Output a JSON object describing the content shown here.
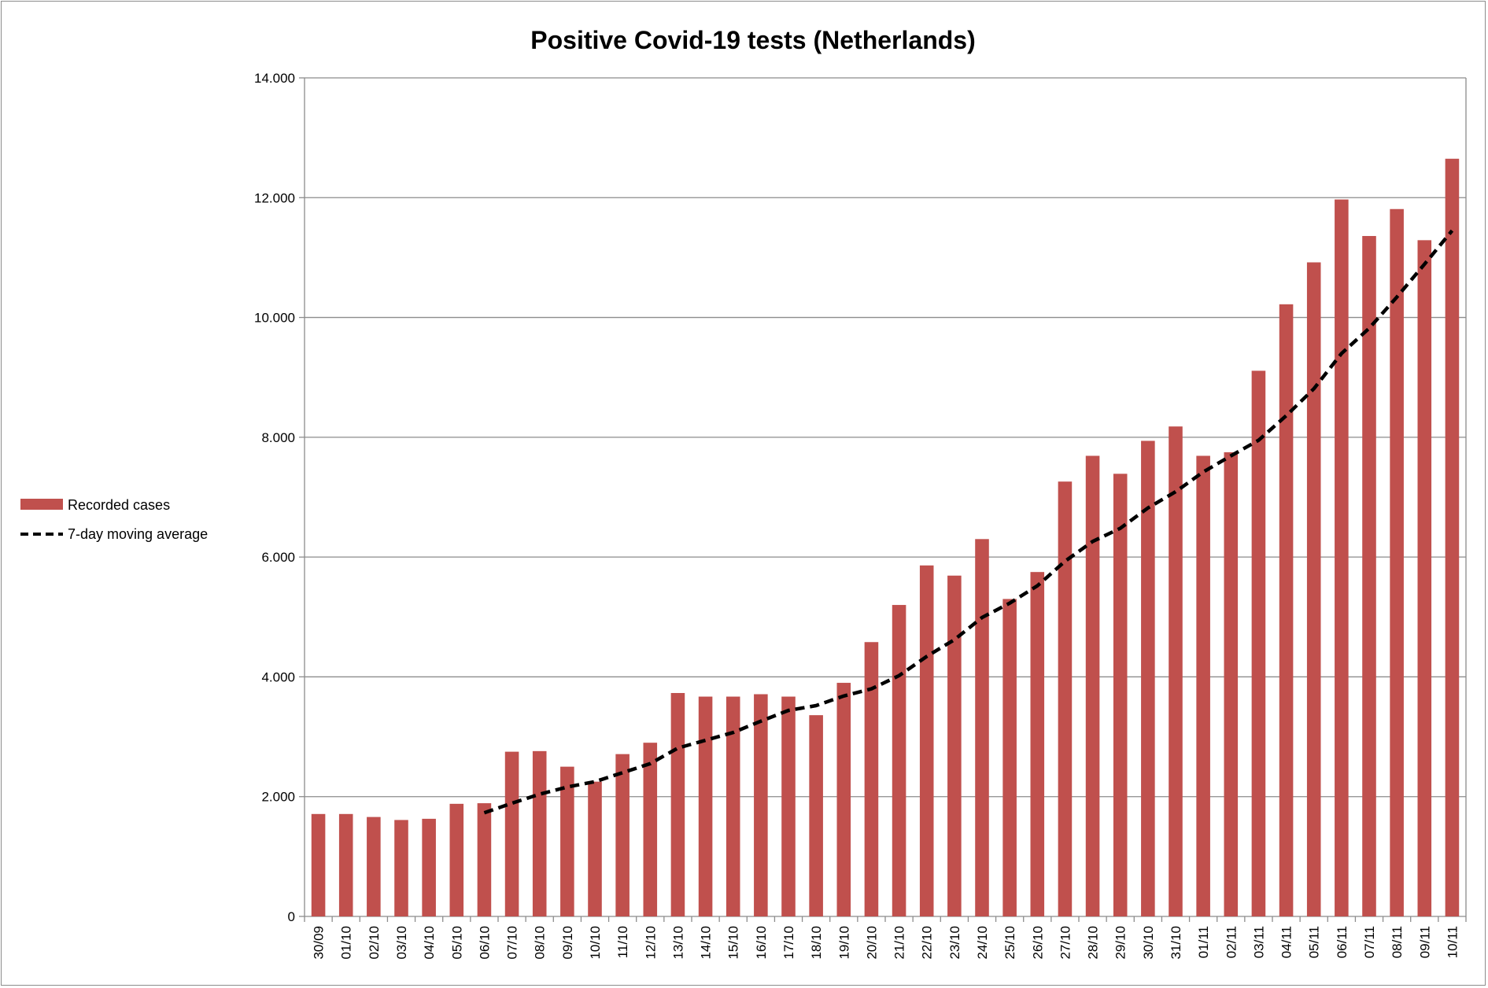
{
  "chart_data": {
    "type": "bar",
    "title": "Positive Covid-19 tests (Netherlands)",
    "xlabel": "",
    "ylabel": "",
    "ylim": [
      0,
      14000
    ],
    "yticks": [
      0,
      2000,
      4000,
      6000,
      8000,
      10000,
      12000,
      14000
    ],
    "ytick_labels": [
      "0",
      "2.000",
      "4.000",
      "6.000",
      "8.000",
      "10.000",
      "12.000",
      "14.000"
    ],
    "grid": true,
    "legend_position": "left",
    "categories": [
      "30/09",
      "01/10",
      "02/10",
      "03/10",
      "04/10",
      "05/10",
      "06/10",
      "07/10",
      "08/10",
      "09/10",
      "10/10",
      "11/10",
      "12/10",
      "13/10",
      "14/10",
      "15/10",
      "16/10",
      "17/10",
      "18/10",
      "19/10",
      "20/10",
      "21/10",
      "22/10",
      "23/10",
      "24/10",
      "25/10",
      "26/10",
      "27/10",
      "28/10",
      "29/10",
      "30/10",
      "31/10",
      "01/11",
      "02/11",
      "03/11",
      "04/11",
      "05/11",
      "06/11",
      "07/11",
      "08/11",
      "09/11",
      "10/11"
    ],
    "series": [
      {
        "name": "Recorded cases",
        "type": "bar",
        "color": "#c0504d",
        "values": [
          1710,
          1710,
          1660,
          1610,
          1630,
          1880,
          1890,
          2750,
          2760,
          2500,
          2250,
          2710,
          2900,
          3730,
          3670,
          3670,
          3710,
          3670,
          3360,
          3900,
          4580,
          5200,
          5860,
          5690,
          6300,
          5300,
          5750,
          7260,
          7690,
          7390,
          7940,
          8180,
          7690,
          7750,
          9110,
          10220,
          10920,
          11970,
          11360,
          11810,
          11290,
          12650
        ]
      },
      {
        "name": "7-day moving average",
        "type": "line",
        "style": "dashed",
        "color": "#000000",
        "values": [
          null,
          null,
          null,
          null,
          null,
          null,
          1730,
          1890,
          2040,
          2160,
          2250,
          2400,
          2550,
          2810,
          2940,
          3070,
          3260,
          3440,
          3520,
          3680,
          3800,
          4020,
          4340,
          4620,
          4990,
          5230,
          5520,
          5930,
          6260,
          6480,
          6820,
          7090,
          7420,
          7690,
          7950,
          8360,
          8810,
          9400,
          9820,
          10340,
          10890,
          11450
        ]
      }
    ]
  }
}
